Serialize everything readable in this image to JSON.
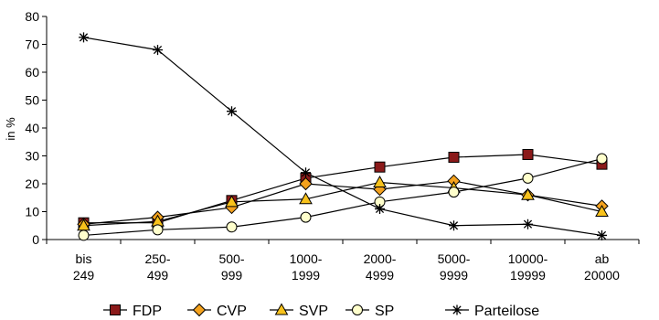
{
  "chart_data": {
    "type": "line",
    "title": "",
    "xlabel": "",
    "ylabel": "in %",
    "ylim": [
      0,
      80
    ],
    "yticks": [
      0,
      10,
      20,
      30,
      40,
      50,
      60,
      70,
      80
    ],
    "categories": [
      [
        "bis",
        "249"
      ],
      [
        "250-",
        "499"
      ],
      [
        "500-",
        "999"
      ],
      [
        "1000-",
        "1999"
      ],
      [
        "2000-",
        "4999"
      ],
      [
        "5000-",
        "9999"
      ],
      [
        "10000-",
        "19999"
      ],
      [
        "ab",
        "20000"
      ]
    ],
    "grid": false,
    "legend_position": "bottom",
    "series": [
      {
        "name": "FDP",
        "marker": "square",
        "color": "#8b1a1a",
        "values": [
          6,
          6,
          14,
          22,
          26,
          29.5,
          30.5,
          27
        ]
      },
      {
        "name": "CVP",
        "marker": "diamond",
        "color": "#f4a21e",
        "values": [
          5.5,
          8,
          11.5,
          20,
          18,
          21,
          16,
          12
        ]
      },
      {
        "name": "SVP",
        "marker": "triangle",
        "color": "#f8c21c",
        "values": [
          5,
          6.5,
          13.5,
          14.5,
          20.5,
          18.5,
          16,
          10
        ]
      },
      {
        "name": "SP",
        "marker": "circle",
        "color": "#ffffcc",
        "values": [
          1.5,
          3.5,
          4.5,
          8,
          13.5,
          17,
          22,
          29
        ]
      },
      {
        "name": "Parteilose",
        "marker": "star",
        "color": "#000000",
        "values": [
          72.5,
          68,
          46,
          24,
          11,
          5,
          5.5,
          1.5
        ]
      }
    ]
  }
}
